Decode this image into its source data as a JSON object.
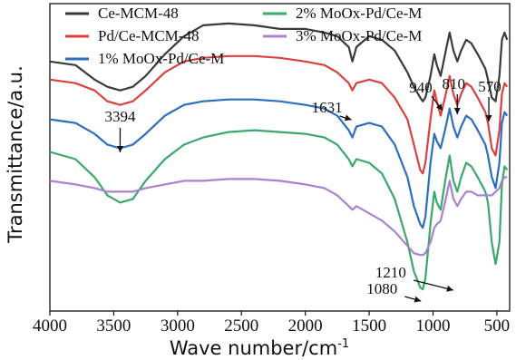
{
  "chart_data": {
    "type": "line",
    "xlabel": "Wave number/cm",
    "xlabel_sup": "-1",
    "ylabel": "Transmittance/a.u.",
    "xlim": [
      4000,
      400
    ],
    "x_reversed": true,
    "yticks_shown": false,
    "grid": false,
    "legend": "top-inside",
    "x_ticks": [
      4000,
      3500,
      3000,
      2500,
      2000,
      1500,
      1000,
      500
    ],
    "series": [
      {
        "name": "Ce-MCM-48",
        "color": "#3a3a3a",
        "x": [
          4000,
          3800,
          3650,
          3550,
          3450,
          3350,
          3250,
          3100,
          2950,
          2800,
          2600,
          2400,
          2200,
          2000,
          1850,
          1750,
          1660,
          1631,
          1600,
          1500,
          1400,
          1300,
          1200,
          1150,
          1100,
          1080,
          1060,
          1020,
          990,
          970,
          940,
          900,
          870,
          840,
          810,
          780,
          740,
          700,
          650,
          620,
          590,
          570,
          540,
          510,
          480,
          460,
          440,
          420
        ],
        "y": [
          6.6,
          6.5,
          6.1,
          5.9,
          5.8,
          5.9,
          6.2,
          6.8,
          7.3,
          7.6,
          7.65,
          7.6,
          7.5,
          7.5,
          7.4,
          7.3,
          7.0,
          6.6,
          7.0,
          7.3,
          7.2,
          6.9,
          6.3,
          5.9,
          5.6,
          5.5,
          5.6,
          6.2,
          6.8,
          6.5,
          6.2,
          6.9,
          7.4,
          6.9,
          6.6,
          6.9,
          7.2,
          7.1,
          6.8,
          6.6,
          6.4,
          6.1,
          5.6,
          5.5,
          6.2,
          7.2,
          7.4,
          7.2
        ]
      },
      {
        "name": "Pd/Ce-MCM-48",
        "color": "#d94141",
        "x": [
          4000,
          3800,
          3650,
          3550,
          3450,
          3350,
          3250,
          3100,
          2950,
          2800,
          2600,
          2400,
          2200,
          2000,
          1850,
          1750,
          1660,
          1631,
          1600,
          1500,
          1400,
          1300,
          1200,
          1150,
          1100,
          1080,
          1060,
          1020,
          990,
          970,
          940,
          900,
          870,
          840,
          810,
          780,
          740,
          700,
          650,
          620,
          590,
          570,
          540,
          510,
          480,
          460,
          440,
          420
        ],
        "y": [
          6.1,
          6.0,
          5.8,
          5.5,
          5.4,
          5.5,
          5.8,
          6.3,
          6.6,
          6.7,
          6.75,
          6.75,
          6.7,
          6.6,
          6.5,
          6.3,
          6.0,
          5.8,
          6.0,
          6.1,
          6.0,
          5.6,
          5.0,
          4.3,
          3.6,
          3.5,
          3.8,
          5.0,
          5.8,
          5.5,
          5.1,
          5.7,
          6.2,
          5.7,
          5.4,
          5.7,
          6.0,
          5.9,
          5.6,
          5.4,
          5.2,
          4.9,
          4.2,
          4.0,
          4.7,
          5.7,
          6.0,
          5.9
        ]
      },
      {
        "name": "1% MoOx-Pd/Ce-M",
        "color": "#2a6fc0",
        "x": [
          4000,
          3800,
          3650,
          3550,
          3450,
          3350,
          3250,
          3100,
          2950,
          2800,
          2600,
          2400,
          2200,
          2000,
          1850,
          1750,
          1660,
          1631,
          1600,
          1500,
          1400,
          1300,
          1200,
          1150,
          1100,
          1080,
          1060,
          1020,
          990,
          970,
          940,
          900,
          870,
          840,
          810,
          780,
          740,
          700,
          650,
          620,
          590,
          570,
          540,
          510,
          480,
          460,
          440,
          420
        ],
        "y": [
          5.0,
          4.9,
          4.6,
          4.3,
          4.2,
          4.3,
          4.6,
          5.1,
          5.4,
          5.5,
          5.55,
          5.55,
          5.5,
          5.4,
          5.3,
          5.1,
          4.7,
          4.5,
          4.8,
          4.9,
          4.8,
          4.3,
          3.4,
          2.6,
          2.1,
          2.0,
          2.3,
          3.8,
          4.6,
          4.4,
          4.2,
          4.8,
          5.3,
          4.8,
          4.5,
          4.8,
          5.1,
          5.0,
          4.7,
          4.5,
          4.3,
          4.0,
          3.4,
          3.1,
          3.8,
          4.9,
          5.2,
          5.1
        ]
      },
      {
        "name": "2% MoOx-Pd/Ce-M",
        "color": "#3aa86b",
        "x": [
          4000,
          3800,
          3650,
          3550,
          3450,
          3350,
          3250,
          3100,
          2950,
          2800,
          2600,
          2400,
          2200,
          2000,
          1850,
          1750,
          1660,
          1631,
          1600,
          1500,
          1400,
          1300,
          1200,
          1150,
          1100,
          1080,
          1060,
          1020,
          990,
          970,
          940,
          900,
          870,
          840,
          810,
          780,
          740,
          700,
          650,
          620,
          590,
          570,
          540,
          510,
          480,
          460,
          440,
          420
        ],
        "y": [
          4.1,
          3.9,
          3.4,
          2.9,
          2.7,
          2.8,
          3.3,
          3.9,
          4.3,
          4.5,
          4.65,
          4.7,
          4.65,
          4.6,
          4.5,
          4.3,
          3.9,
          3.7,
          3.9,
          3.8,
          3.5,
          2.8,
          1.6,
          0.8,
          0.35,
          0.3,
          0.6,
          2.1,
          3.0,
          2.7,
          2.5,
          3.4,
          4.0,
          3.3,
          3.0,
          3.4,
          3.8,
          3.7,
          3.4,
          3.2,
          3.0,
          2.7,
          1.6,
          1.0,
          1.6,
          3.2,
          3.7,
          3.6
        ]
      },
      {
        "name": "3% MoOx-Pd/Ce-M",
        "color": "#a883cc",
        "x": [
          4000,
          3800,
          3650,
          3550,
          3450,
          3350,
          3250,
          3100,
          2950,
          2800,
          2600,
          2400,
          2200,
          2000,
          1850,
          1750,
          1660,
          1631,
          1600,
          1500,
          1400,
          1300,
          1200,
          1150,
          1100,
          1080,
          1060,
          1020,
          990,
          970,
          940,
          900,
          870,
          840,
          810,
          780,
          740,
          700,
          650,
          620,
          590,
          570,
          540,
          510,
          480,
          460,
          440,
          420
        ],
        "y": [
          3.3,
          3.2,
          3.1,
          3.0,
          3.0,
          3.0,
          3.1,
          3.2,
          3.3,
          3.3,
          3.35,
          3.35,
          3.3,
          3.2,
          3.1,
          2.9,
          2.6,
          2.5,
          2.6,
          2.4,
          2.2,
          1.9,
          1.5,
          1.3,
          1.25,
          1.25,
          1.3,
          1.6,
          2.0,
          2.1,
          2.2,
          2.8,
          3.3,
          2.8,
          2.6,
          2.8,
          3.0,
          3.0,
          2.9,
          2.9,
          2.9,
          2.9,
          2.9,
          3.0,
          3.1,
          3.3,
          3.4,
          3.4
        ]
      }
    ],
    "annotations": [
      {
        "label": "3394",
        "x": 3450
      },
      {
        "label": "1631",
        "x": 1631
      },
      {
        "label": "940",
        "x": 940
      },
      {
        "label": "810",
        "x": 810
      },
      {
        "label": "570",
        "x": 570
      },
      {
        "label": "1210",
        "x": 1210
      },
      {
        "label": "1080",
        "x": 1080
      }
    ]
  }
}
